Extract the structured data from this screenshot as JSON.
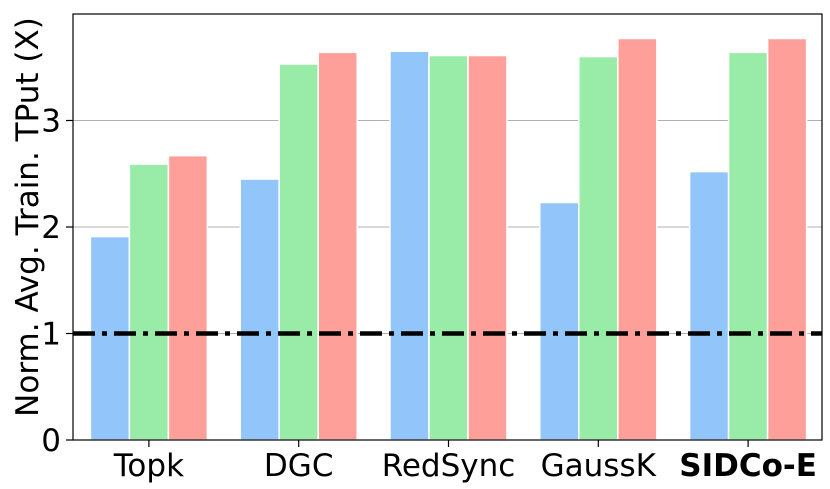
{
  "chart_data": {
    "type": "bar",
    "title": "",
    "xlabel": "",
    "ylabel": "Norm. Avg. Train. TPut (X)",
    "ylim": [
      0,
      4.0
    ],
    "yticks": [
      "0",
      "1",
      "2",
      "3"
    ],
    "grid": "horizontal",
    "categories": [
      "Topk",
      "DGC",
      "RedSync",
      "GaussK",
      "SIDCo-E"
    ],
    "highlight_category": "SIDCo-E",
    "highlight_color": "#ff0000",
    "series": [
      {
        "values": [
          1.91,
          2.45,
          3.65,
          2.23,
          2.52
        ],
        "color": "#92c5fa"
      },
      {
        "values": [
          2.59,
          3.53,
          3.61,
          3.6,
          3.64
        ],
        "color": "#98eca8"
      },
      {
        "values": [
          2.67,
          3.64,
          3.61,
          3.77,
          3.77
        ],
        "color": "#ff9f9a"
      }
    ],
    "reference_line": {
      "y": 1.0,
      "style": "dash-dot",
      "color": "#000000"
    }
  }
}
